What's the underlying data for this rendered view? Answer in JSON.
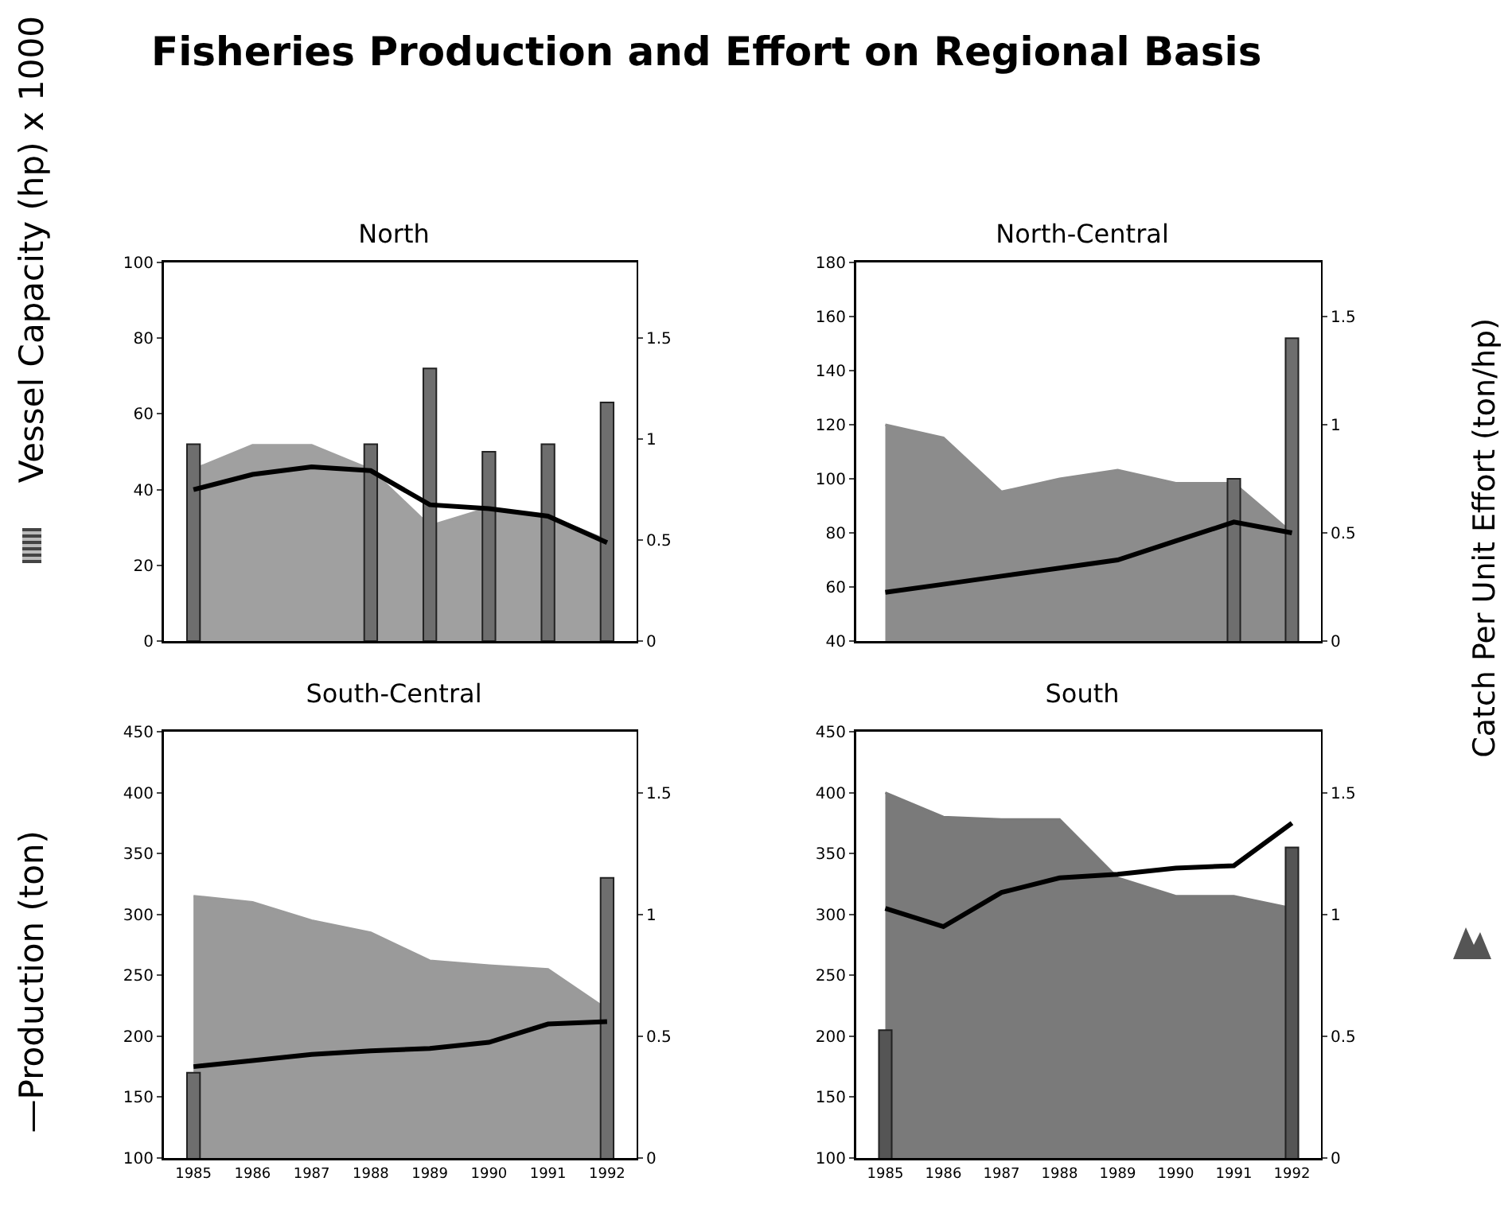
{
  "chart_data": [
    {
      "type": "bar",
      "title": "North",
      "annotations": [
        "Fisheries Production and Effort on Regional Basis",
        "—Production (ton)",
        "Vessel Capacity (hp) x 1000",
        "Catch Per Unit Effort (ton/hp)"
      ],
      "categories": [
        "1985",
        "1986",
        "1987",
        "1988",
        "1989",
        "1990",
        "1991",
        "1992"
      ],
      "tick_labels": "y",
      "ylim": [
        0,
        100
      ],
      "yticks": [
        0,
        20,
        40,
        60,
        80,
        100
      ],
      "y2lim": [
        0,
        1.875
      ],
      "y2ticks": [
        0,
        0.5,
        1,
        1.5
      ],
      "series": [
        {
          "type": "area",
          "axis": "y2",
          "color": "#a0a0a0",
          "values": [
            0.85,
            0.97,
            0.97,
            0.85,
            0.57,
            0.66,
            0.62,
            0.5
          ]
        },
        {
          "color": "#6e6e6e",
          "values": [
            52,
            null,
            null,
            52,
            72,
            50,
            52,
            63
          ]
        },
        {
          "type": "line",
          "color": "#000000",
          "values": [
            40,
            44,
            46,
            45,
            36,
            35,
            33,
            26
          ]
        }
      ]
    },
    {
      "type": "bar",
      "title": "North-Central",
      "categories": [
        "1985",
        "1986",
        "1987",
        "1988",
        "1989",
        "1990",
        "1991",
        "1992"
      ],
      "tick_labels": "y",
      "ylim": [
        40,
        180
      ],
      "yticks": [
        40,
        60,
        80,
        100,
        120,
        140,
        160,
        180
      ],
      "y2lim": [
        0,
        1.75
      ],
      "y2ticks": [
        0,
        0.5,
        1,
        1.5
      ],
      "series": [
        {
          "type": "area",
          "axis": "y2",
          "color": "#8c8c8c",
          "values": [
            1.0,
            0.94,
            0.69,
            0.75,
            0.79,
            0.73,
            0.73,
            0.5
          ]
        },
        {
          "color": "#6e6e6e",
          "values": [
            null,
            null,
            null,
            null,
            null,
            null,
            100,
            152
          ]
        },
        {
          "type": "line",
          "color": "#000000",
          "values": [
            58,
            61,
            64,
            67,
            70,
            77,
            84,
            80
          ]
        }
      ]
    },
    {
      "type": "bar",
      "title": "South-Central",
      "categories": [
        "1985",
        "1986",
        "1987",
        "1988",
        "1989",
        "1990",
        "1991",
        "1992"
      ],
      "ylim": [
        100,
        450
      ],
      "yticks": [
        100,
        150,
        200,
        250,
        300,
        350,
        400,
        450
      ],
      "y2lim": [
        0,
        1.75
      ],
      "y2ticks": [
        0,
        0.5,
        1,
        1.5
      ],
      "series": [
        {
          "type": "area",
          "axis": "y2",
          "color": "#9a9a9a",
          "values": [
            1.075,
            1.05,
            0.975,
            0.925,
            0.81,
            0.79,
            0.775,
            0.61
          ]
        },
        {
          "color": "#6e6e6e",
          "values": [
            170,
            null,
            null,
            null,
            null,
            null,
            null,
            330
          ]
        },
        {
          "type": "line",
          "color": "#000000",
          "values": [
            175,
            180,
            185,
            188,
            190,
            195,
            210,
            212
          ]
        }
      ]
    },
    {
      "type": "bar",
      "title": "South",
      "categories": [
        "1985",
        "1986",
        "1987",
        "1988",
        "1989",
        "1990",
        "1991",
        "1992"
      ],
      "ylim": [
        100,
        450
      ],
      "yticks": [
        100,
        150,
        200,
        250,
        300,
        350,
        400,
        450
      ],
      "y2lim": [
        0,
        1.75
      ],
      "y2ticks": [
        0,
        0.5,
        1,
        1.5
      ],
      "series": [
        {
          "type": "area",
          "axis": "y2",
          "color": "#7a7a7a",
          "values": [
            1.5,
            1.4,
            1.39,
            1.39,
            1.15,
            1.075,
            1.075,
            1.025
          ]
        },
        {
          "color": "#555555",
          "values": [
            205,
            null,
            null,
            null,
            null,
            null,
            null,
            355
          ]
        },
        {
          "type": "line",
          "color": "#000000",
          "values": [
            305,
            290,
            318,
            330,
            333,
            338,
            340,
            375
          ]
        }
      ]
    }
  ]
}
